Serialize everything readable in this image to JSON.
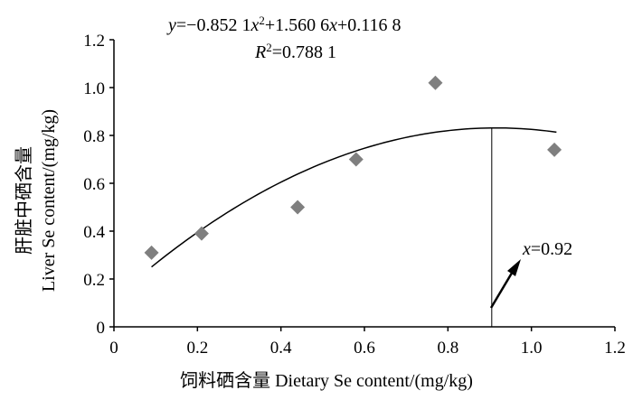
{
  "chart_data": {
    "type": "scatter",
    "xlabel": "饲料硒含量  Dietary Se content/(mg/kg)",
    "ylabel_line1": "肝脏中硒含量",
    "ylabel_line2": "Liver Se content/(mg/kg)",
    "xlim": [
      0,
      1.2
    ],
    "ylim": [
      0,
      1.2
    ],
    "x_ticks": [
      "0",
      "0.2",
      "0.4",
      "0.6",
      "0.8",
      "1.0",
      "1.2"
    ],
    "y_ticks": [
      "0",
      "0.2",
      "0.4",
      "0.6",
      "0.8",
      "1.0",
      "1.2"
    ],
    "points": [
      {
        "x": 0.09,
        "y": 0.31
      },
      {
        "x": 0.21,
        "y": 0.39
      },
      {
        "x": 0.44,
        "y": 0.5
      },
      {
        "x": 0.58,
        "y": 0.7
      },
      {
        "x": 0.77,
        "y": 1.02
      },
      {
        "x": 1.055,
        "y": 0.74
      }
    ],
    "fit": {
      "a": -0.8521,
      "b": 1.5606,
      "c": 0.1168,
      "x_from": 0.09,
      "x_to": 1.06
    },
    "equation": {
      "y_var": "y",
      "rhs_1": "=−0.852 1",
      "x_var": "x",
      "rhs_2": "+1.560 6",
      "rhs_3": "+0.116 8",
      "r_var": "R",
      "r_value": "=0.788 1"
    },
    "annotation": {
      "x_var": "x",
      "text": "=0.92",
      "x_value": 0.905
    },
    "grid": false,
    "legend": "none"
  }
}
